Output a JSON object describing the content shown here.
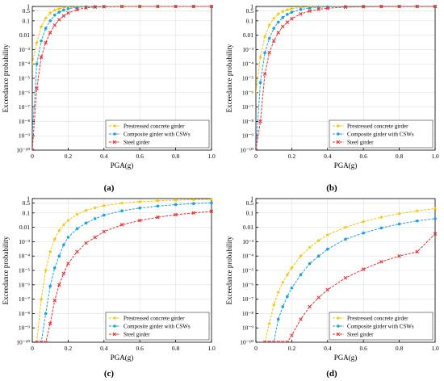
{
  "legend_names": [
    "Prestressed concrete girder",
    "Composite girder with CSWs",
    "Steel girder"
  ],
  "series_colors": [
    "#f5c400",
    "#1aa3e0",
    "#e8312e"
  ],
  "x_ticks": [
    "0",
    "0.2",
    "0.4",
    "0.6",
    "0.8",
    "1.0"
  ],
  "y_ticks_a": [
    "10⁻¹⁰",
    "10⁻⁹",
    "10⁻⁸",
    "10⁻⁷",
    "10⁻⁶",
    "10⁻⁵",
    "10⁻⁴",
    "10⁻³",
    "0.01",
    "0.1",
    "0.5",
    "1"
  ],
  "chart_data": [
    {
      "type": "line",
      "panel_label": "(a)",
      "xlabel": "PGA(g)",
      "ylabel": "Exceedance probability",
      "xlim": [
        0,
        1
      ],
      "ylim": [
        1e-10,
        1
      ],
      "y_scale": "log",
      "grid": true,
      "legend_position": "bottom-right",
      "x": [
        0,
        0.025,
        0.05,
        0.075,
        0.1,
        0.125,
        0.15,
        0.175,
        0.2,
        0.25,
        0.3,
        0.35,
        0.4,
        0.5,
        0.6,
        0.7,
        0.8,
        0.9,
        1.0
      ],
      "series": [
        {
          "name": "Prestressed concrete girder",
          "values": [
            0.0001,
            0.003,
            0.04,
            0.15,
            0.35,
            0.55,
            0.7,
            0.8,
            0.88,
            0.95,
            0.98,
            0.99,
            1,
            1,
            1,
            1,
            1,
            1,
            1
          ]
        },
        {
          "name": "Composite girder with CSWs",
          "values": [
            1e-09,
            0.0001,
            0.004,
            0.03,
            0.1,
            0.25,
            0.4,
            0.55,
            0.7,
            0.86,
            0.94,
            0.98,
            0.99,
            1,
            1,
            1,
            1,
            1,
            1
          ]
        },
        {
          "name": "Steel girder",
          "values": [
            1e-10,
            2e-06,
            0.0003,
            0.003,
            0.015,
            0.05,
            0.12,
            0.22,
            0.35,
            0.6,
            0.8,
            0.9,
            0.95,
            0.99,
            1,
            1,
            1,
            1,
            1
          ]
        }
      ]
    },
    {
      "type": "line",
      "panel_label": "(b)",
      "xlabel": "PGA(g)",
      "ylabel": "Exceedance probability",
      "xlim": [
        0,
        1
      ],
      "ylim": [
        1e-10,
        1
      ],
      "y_scale": "log",
      "grid": true,
      "legend_position": "bottom-right",
      "x": [
        0,
        0.025,
        0.05,
        0.075,
        0.1,
        0.125,
        0.15,
        0.175,
        0.2,
        0.25,
        0.3,
        0.35,
        0.4,
        0.5,
        0.6,
        0.7,
        0.8,
        0.9,
        1.0
      ],
      "series": [
        {
          "name": "Prestressed concrete girder",
          "values": [
            1e-06,
            0.0003,
            0.008,
            0.05,
            0.15,
            0.3,
            0.45,
            0.58,
            0.7,
            0.85,
            0.93,
            0.97,
            0.99,
            1,
            1,
            1,
            1,
            1,
            1
          ]
        },
        {
          "name": "Composite girder with CSWs",
          "values": [
            1e-10,
            5e-06,
            0.0006,
            0.006,
            0.03,
            0.08,
            0.17,
            0.28,
            0.4,
            0.62,
            0.78,
            0.88,
            0.94,
            0.98,
            0.99,
            1,
            1,
            1,
            1
          ]
        },
        {
          "name": "Steel girder",
          "values": [
            1e-10,
            1e-08,
            2e-05,
            0.0006,
            0.004,
            0.015,
            0.04,
            0.08,
            0.14,
            0.3,
            0.48,
            0.63,
            0.75,
            0.9,
            0.96,
            0.99,
            1,
            1,
            1
          ]
        }
      ]
    },
    {
      "type": "line",
      "panel_label": "(c)",
      "xlabel": "PGA(g)",
      "ylabel": "Exceedance probability",
      "xlim": [
        0,
        1
      ],
      "ylim": [
        1e-10,
        1
      ],
      "y_scale": "log",
      "grid": true,
      "legend_position": "bottom-right",
      "x": [
        0.025,
        0.05,
        0.075,
        0.1,
        0.125,
        0.15,
        0.175,
        0.2,
        0.25,
        0.3,
        0.35,
        0.4,
        0.5,
        0.6,
        0.7,
        0.8,
        0.9,
        1.0
      ],
      "series": [
        {
          "name": "Prestressed concrete girder",
          "values": [
            1e-10,
            1e-07,
            1e-05,
            0.0002,
            0.0015,
            0.006,
            0.015,
            0.03,
            0.08,
            0.15,
            0.23,
            0.32,
            0.48,
            0.6,
            0.7,
            0.78,
            0.84,
            0.88
          ]
        },
        {
          "name": "Composite girder with CSWs",
          "values": [
            1e-10,
            1e-10,
            1e-08,
            8e-07,
            1.5e-05,
            0.0001,
            0.0006,
            0.002,
            0.008,
            0.02,
            0.04,
            0.07,
            0.14,
            0.22,
            0.3,
            0.38,
            0.45,
            0.5
          ]
        },
        {
          "name": "Steel girder",
          "values": [
            1e-10,
            1e-10,
            1e-10,
            2e-09,
            8e-08,
            1e-06,
            6e-06,
            3e-05,
            0.0002,
            0.0008,
            0.002,
            0.005,
            0.015,
            0.03,
            0.05,
            0.075,
            0.1,
            0.13
          ]
        }
      ]
    },
    {
      "type": "line",
      "panel_label": "(d)",
      "xlabel": "PGA(g)",
      "ylabel": "Exceedance probability",
      "xlim": [
        0,
        1
      ],
      "ylim": [
        1e-10,
        1
      ],
      "y_scale": "log",
      "grid": true,
      "legend_position": "bottom-right",
      "x": [
        0.05,
        0.075,
        0.1,
        0.125,
        0.15,
        0.175,
        0.2,
        0.25,
        0.3,
        0.35,
        0.4,
        0.5,
        0.6,
        0.7,
        0.8,
        0.9,
        1.0
      ],
      "series": [
        {
          "name": "Prestressed concrete girder",
          "values": [
            1e-10,
            2e-09,
            4e-08,
            3e-07,
            1.5e-06,
            5e-06,
            1.5e-05,
            0.0001,
            0.0004,
            0.0012,
            0.003,
            0.01,
            0.025,
            0.05,
            0.09,
            0.14,
            0.2
          ]
        },
        {
          "name": "Composite girder with CSWs",
          "values": [
            1e-10,
            1e-10,
            1e-10,
            4e-09,
            3e-08,
            1.5e-07,
            6e-07,
            5e-06,
            3e-05,
            0.0001,
            0.0003,
            0.0015,
            0.004,
            0.009,
            0.017,
            0.028,
            0.04
          ]
        },
        {
          "name": "Steel girder",
          "values": [
            1e-10,
            1e-10,
            1e-10,
            1e-10,
            1e-10,
            1e-10,
            3e-10,
            4e-09,
            3e-08,
            1.3e-07,
            4.5e-07,
            3e-06,
            1.2e-05,
            4e-05,
            0.0001,
            0.0002,
            0.0035
          ]
        }
      ]
    }
  ]
}
